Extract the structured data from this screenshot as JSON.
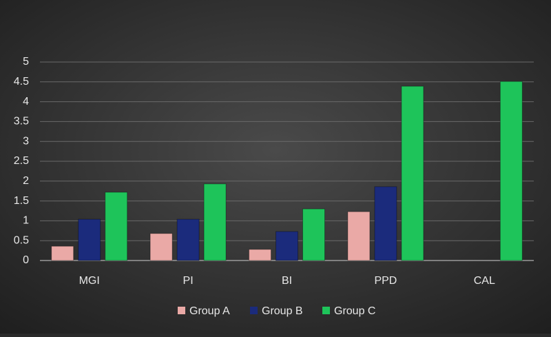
{
  "chart_data": {
    "type": "bar",
    "categories": [
      "MGI",
      "PI",
      "BI",
      "PPD",
      "CAL"
    ],
    "series": [
      {
        "name": "Group A",
        "color": "#eaa9a6",
        "values": [
          0.36,
          0.68,
          0.28,
          1.23,
          0
        ]
      },
      {
        "name": "Group B",
        "color": "#1b2b7c",
        "values": [
          1.04,
          1.04,
          0.73,
          1.86,
          0
        ]
      },
      {
        "name": "Group C",
        "color": "#1ec45a",
        "values": [
          1.72,
          1.93,
          1.3,
          4.39,
          4.51
        ]
      }
    ],
    "ylim": [
      0,
      5
    ],
    "yticks": [
      0,
      0.5,
      1,
      1.5,
      2,
      2.5,
      3,
      3.5,
      4,
      4.5,
      5
    ],
    "grid": true,
    "legend": "bottom"
  }
}
